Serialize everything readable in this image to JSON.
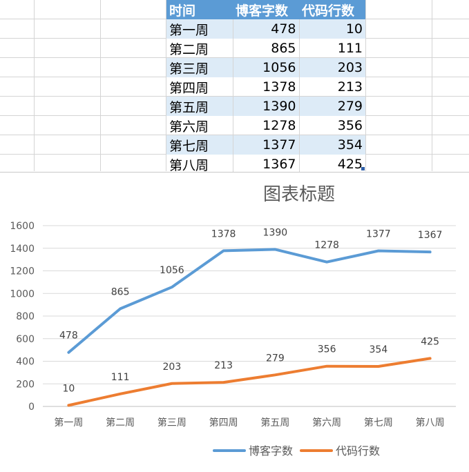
{
  "sheet": {
    "headers": [
      "时间",
      "博客字数",
      "代码行数"
    ],
    "rows": [
      [
        "第一周",
        "478",
        "10"
      ],
      [
        "第二周",
        "865",
        "111"
      ],
      [
        "第三周",
        "1056",
        "203"
      ],
      [
        "第四周",
        "1378",
        "213"
      ],
      [
        "第五周",
        "1390",
        "279"
      ],
      [
        "第六周",
        "1278",
        "356"
      ],
      [
        "第七周",
        "1377",
        "354"
      ],
      [
        "第八周",
        "1367",
        "425"
      ]
    ],
    "header_color": "#5b9bd5",
    "band_color": "#ddebf7"
  },
  "chart_data": {
    "type": "line",
    "title": "图表标题",
    "categories": [
      "第一周",
      "第二周",
      "第三周",
      "第四周",
      "第五周",
      "第六周",
      "第七周",
      "第八周"
    ],
    "series": [
      {
        "name": "博客字数",
        "values": [
          478,
          865,
          1056,
          1378,
          1390,
          1278,
          1377,
          1367
        ],
        "color": "#5b9bd5"
      },
      {
        "name": "代码行数",
        "values": [
          10,
          111,
          203,
          213,
          279,
          356,
          354,
          425
        ],
        "color": "#ed7d31"
      }
    ],
    "ylim": [
      0,
      1600
    ],
    "yticks": [
      "0",
      "200",
      "400",
      "600",
      "800",
      "1000",
      "1200",
      "1400",
      "1600"
    ],
    "grid": true,
    "data_labels": true,
    "legend_position": "bottom"
  }
}
